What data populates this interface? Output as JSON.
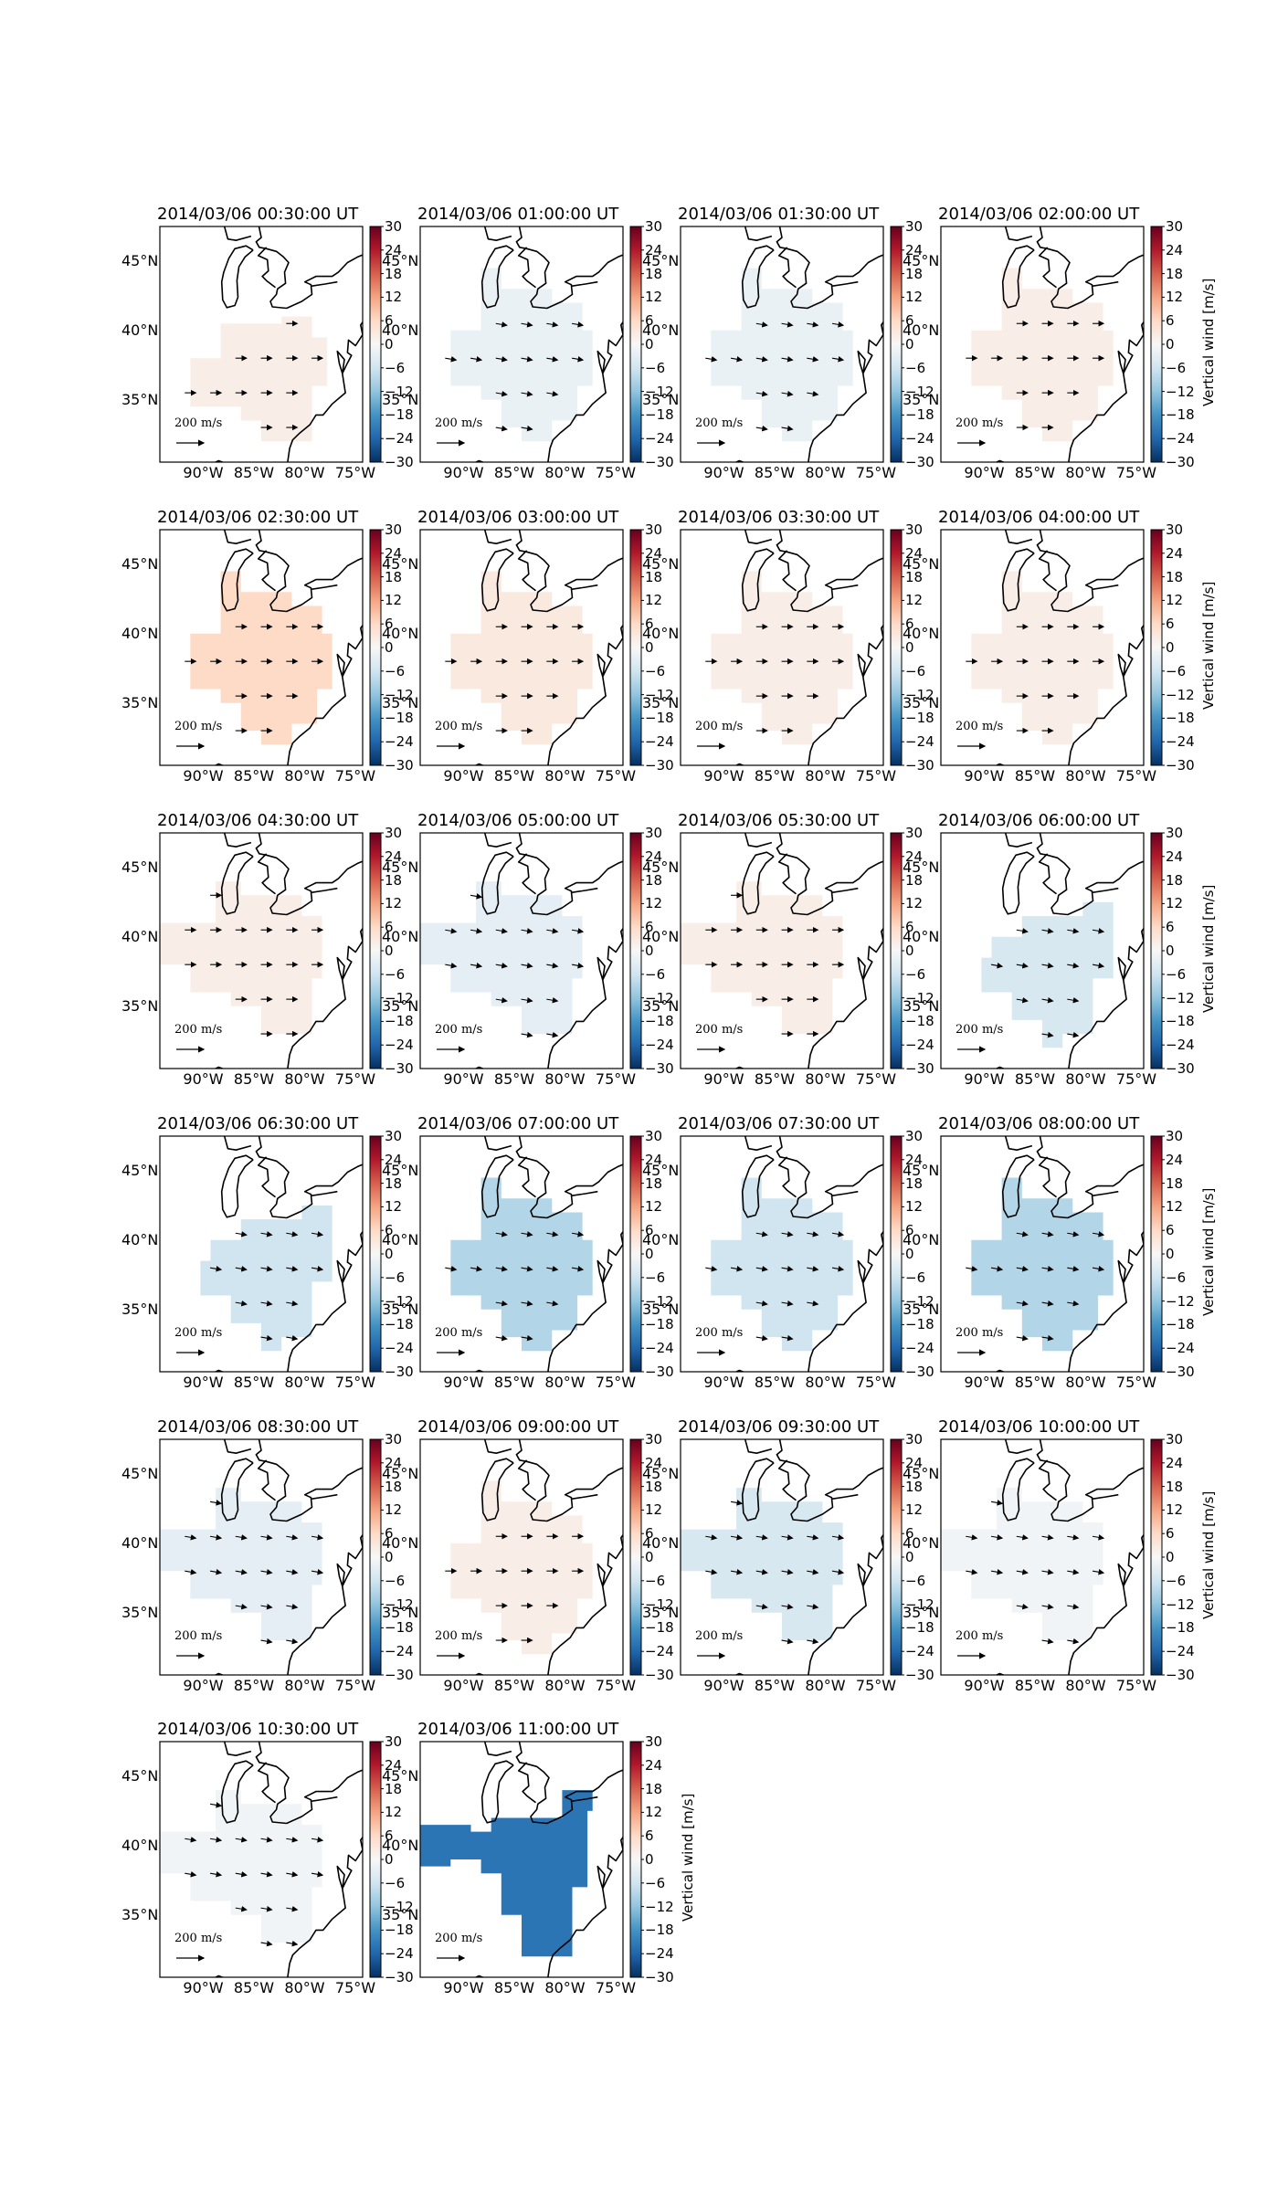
{
  "panels": [
    {
      "title": "2014/03/06 00:30:00 UT",
      "vertical_wind": 2,
      "shape": "small"
    },
    {
      "title": "2014/03/06 01:00:00 UT",
      "vertical_wind": -2,
      "shape": "large"
    },
    {
      "title": "2014/03/06 01:30:00 UT",
      "vertical_wind": -2,
      "shape": "large"
    },
    {
      "title": "2014/03/06 02:00:00 UT",
      "vertical_wind": 2,
      "shape": "large"
    },
    {
      "title": "2014/03/06 02:30:00 UT",
      "vertical_wind": 6,
      "shape": "large"
    },
    {
      "title": "2014/03/06 03:00:00 UT",
      "vertical_wind": 3,
      "shape": "large"
    },
    {
      "title": "2014/03/06 03:30:00 UT",
      "vertical_wind": 2,
      "shape": "large"
    },
    {
      "title": "2014/03/06 04:00:00 UT",
      "vertical_wind": 2,
      "shape": "large"
    },
    {
      "title": "2014/03/06 04:30:00 UT",
      "vertical_wind": 2,
      "shape": "west"
    },
    {
      "title": "2014/03/06 05:00:00 UT",
      "vertical_wind": -3,
      "shape": "west"
    },
    {
      "title": "2014/03/06 05:30:00 UT",
      "vertical_wind": 2,
      "shape": "west"
    },
    {
      "title": "2014/03/06 06:00:00 UT",
      "vertical_wind": -5,
      "shape": "mid"
    },
    {
      "title": "2014/03/06 06:30:00 UT",
      "vertical_wind": -6,
      "shape": "mid"
    },
    {
      "title": "2014/03/06 07:00:00 UT",
      "vertical_wind": -9,
      "shape": "large"
    },
    {
      "title": "2014/03/06 07:30:00 UT",
      "vertical_wind": -6,
      "shape": "large"
    },
    {
      "title": "2014/03/06 08:00:00 UT",
      "vertical_wind": -9,
      "shape": "large"
    },
    {
      "title": "2014/03/06 08:30:00 UT",
      "vertical_wind": -3,
      "shape": "west"
    },
    {
      "title": "2014/03/06 09:00:00 UT",
      "vertical_wind": 2,
      "shape": "large"
    },
    {
      "title": "2014/03/06 09:30:00 UT",
      "vertical_wind": -5,
      "shape": "west"
    },
    {
      "title": "2014/03/06 10:00:00 UT",
      "vertical_wind": -1,
      "shape": "west"
    },
    {
      "title": "2014/03/06 10:30:00 UT",
      "vertical_wind": -1,
      "shape": "west"
    },
    {
      "title": "2014/03/06 11:00:00 UT",
      "vertical_wind": -22,
      "shape": "blob"
    }
  ],
  "lat_ticks": [
    "45°N",
    "40°N",
    "35°N"
  ],
  "lon_ticks": [
    "90°W",
    "85°W",
    "80°W",
    "75°W"
  ],
  "colorbar": {
    "ticks": [
      "30",
      "24",
      "18",
      "12",
      "6",
      "0",
      "−6",
      "−12",
      "−18",
      "−24",
      "−30"
    ],
    "range": [
      -30,
      30
    ],
    "label": "Vertical wind [m/s]",
    "colormap": "RdBu_r",
    "stops": [
      "#053061",
      "#2166ac",
      "#4393c3",
      "#92c5de",
      "#d1e5f0",
      "#f7f7f7",
      "#fddbc7",
      "#f4a582",
      "#d6604d",
      "#b2182b",
      "#67001f"
    ]
  },
  "scale_label": "200 m/s"
}
